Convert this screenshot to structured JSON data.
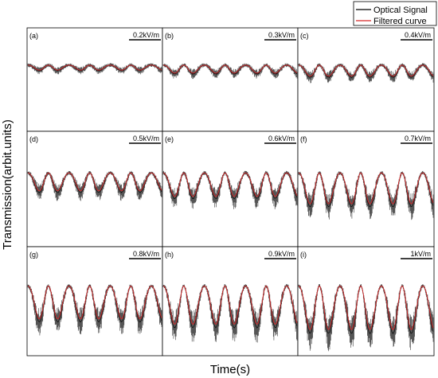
{
  "chart_data": {
    "type": "line",
    "xlabel": "Time(s)",
    "ylabel": "Transmission(arbit.units)",
    "grid": false,
    "legend_position": "top-right",
    "legend": [
      {
        "name": "Optical Signal",
        "color": "#000000"
      },
      {
        "name": "Filtered curve",
        "color": "#d62728"
      }
    ],
    "colors": {
      "signal": "#000000",
      "noise": "#666666",
      "filtered": "#d62728",
      "frame": "#000000"
    },
    "panels": [
      {
        "letter": "(a)",
        "label": "0.2kV/m",
        "modulation_depth": 0.1,
        "cycles": 6.5,
        "dip_ratio": 0.45
      },
      {
        "letter": "(b)",
        "label": "0.3kV/m",
        "modulation_depth": 0.16,
        "cycles": 6.5,
        "dip_ratio": 0.45
      },
      {
        "letter": "(c)",
        "label": "0.4kV/m",
        "modulation_depth": 0.22,
        "cycles": 6.5,
        "dip_ratio": 0.45
      },
      {
        "letter": "(d)",
        "label": "0.5kV/m",
        "modulation_depth": 0.32,
        "cycles": 6.5,
        "dip_ratio": 0.45
      },
      {
        "letter": "(e)",
        "label": "0.6kV/m",
        "modulation_depth": 0.42,
        "cycles": 6.5,
        "dip_ratio": 0.45
      },
      {
        "letter": "(f)",
        "label": "0.7kV/m",
        "modulation_depth": 0.55,
        "cycles": 6.5,
        "dip_ratio": 0.45
      },
      {
        "letter": "(g)",
        "label": "0.8kV/m",
        "modulation_depth": 0.62,
        "cycles": 6.5,
        "dip_ratio": 0.45
      },
      {
        "letter": "(h)",
        "label": "0.9kV/m",
        "modulation_depth": 0.72,
        "cycles": 6.5,
        "dip_ratio": 0.45
      },
      {
        "letter": "(i)",
        "label": "1kV/m",
        "modulation_depth": 0.82,
        "cycles": 6.5,
        "dip_ratio": 0.45
      }
    ]
  }
}
